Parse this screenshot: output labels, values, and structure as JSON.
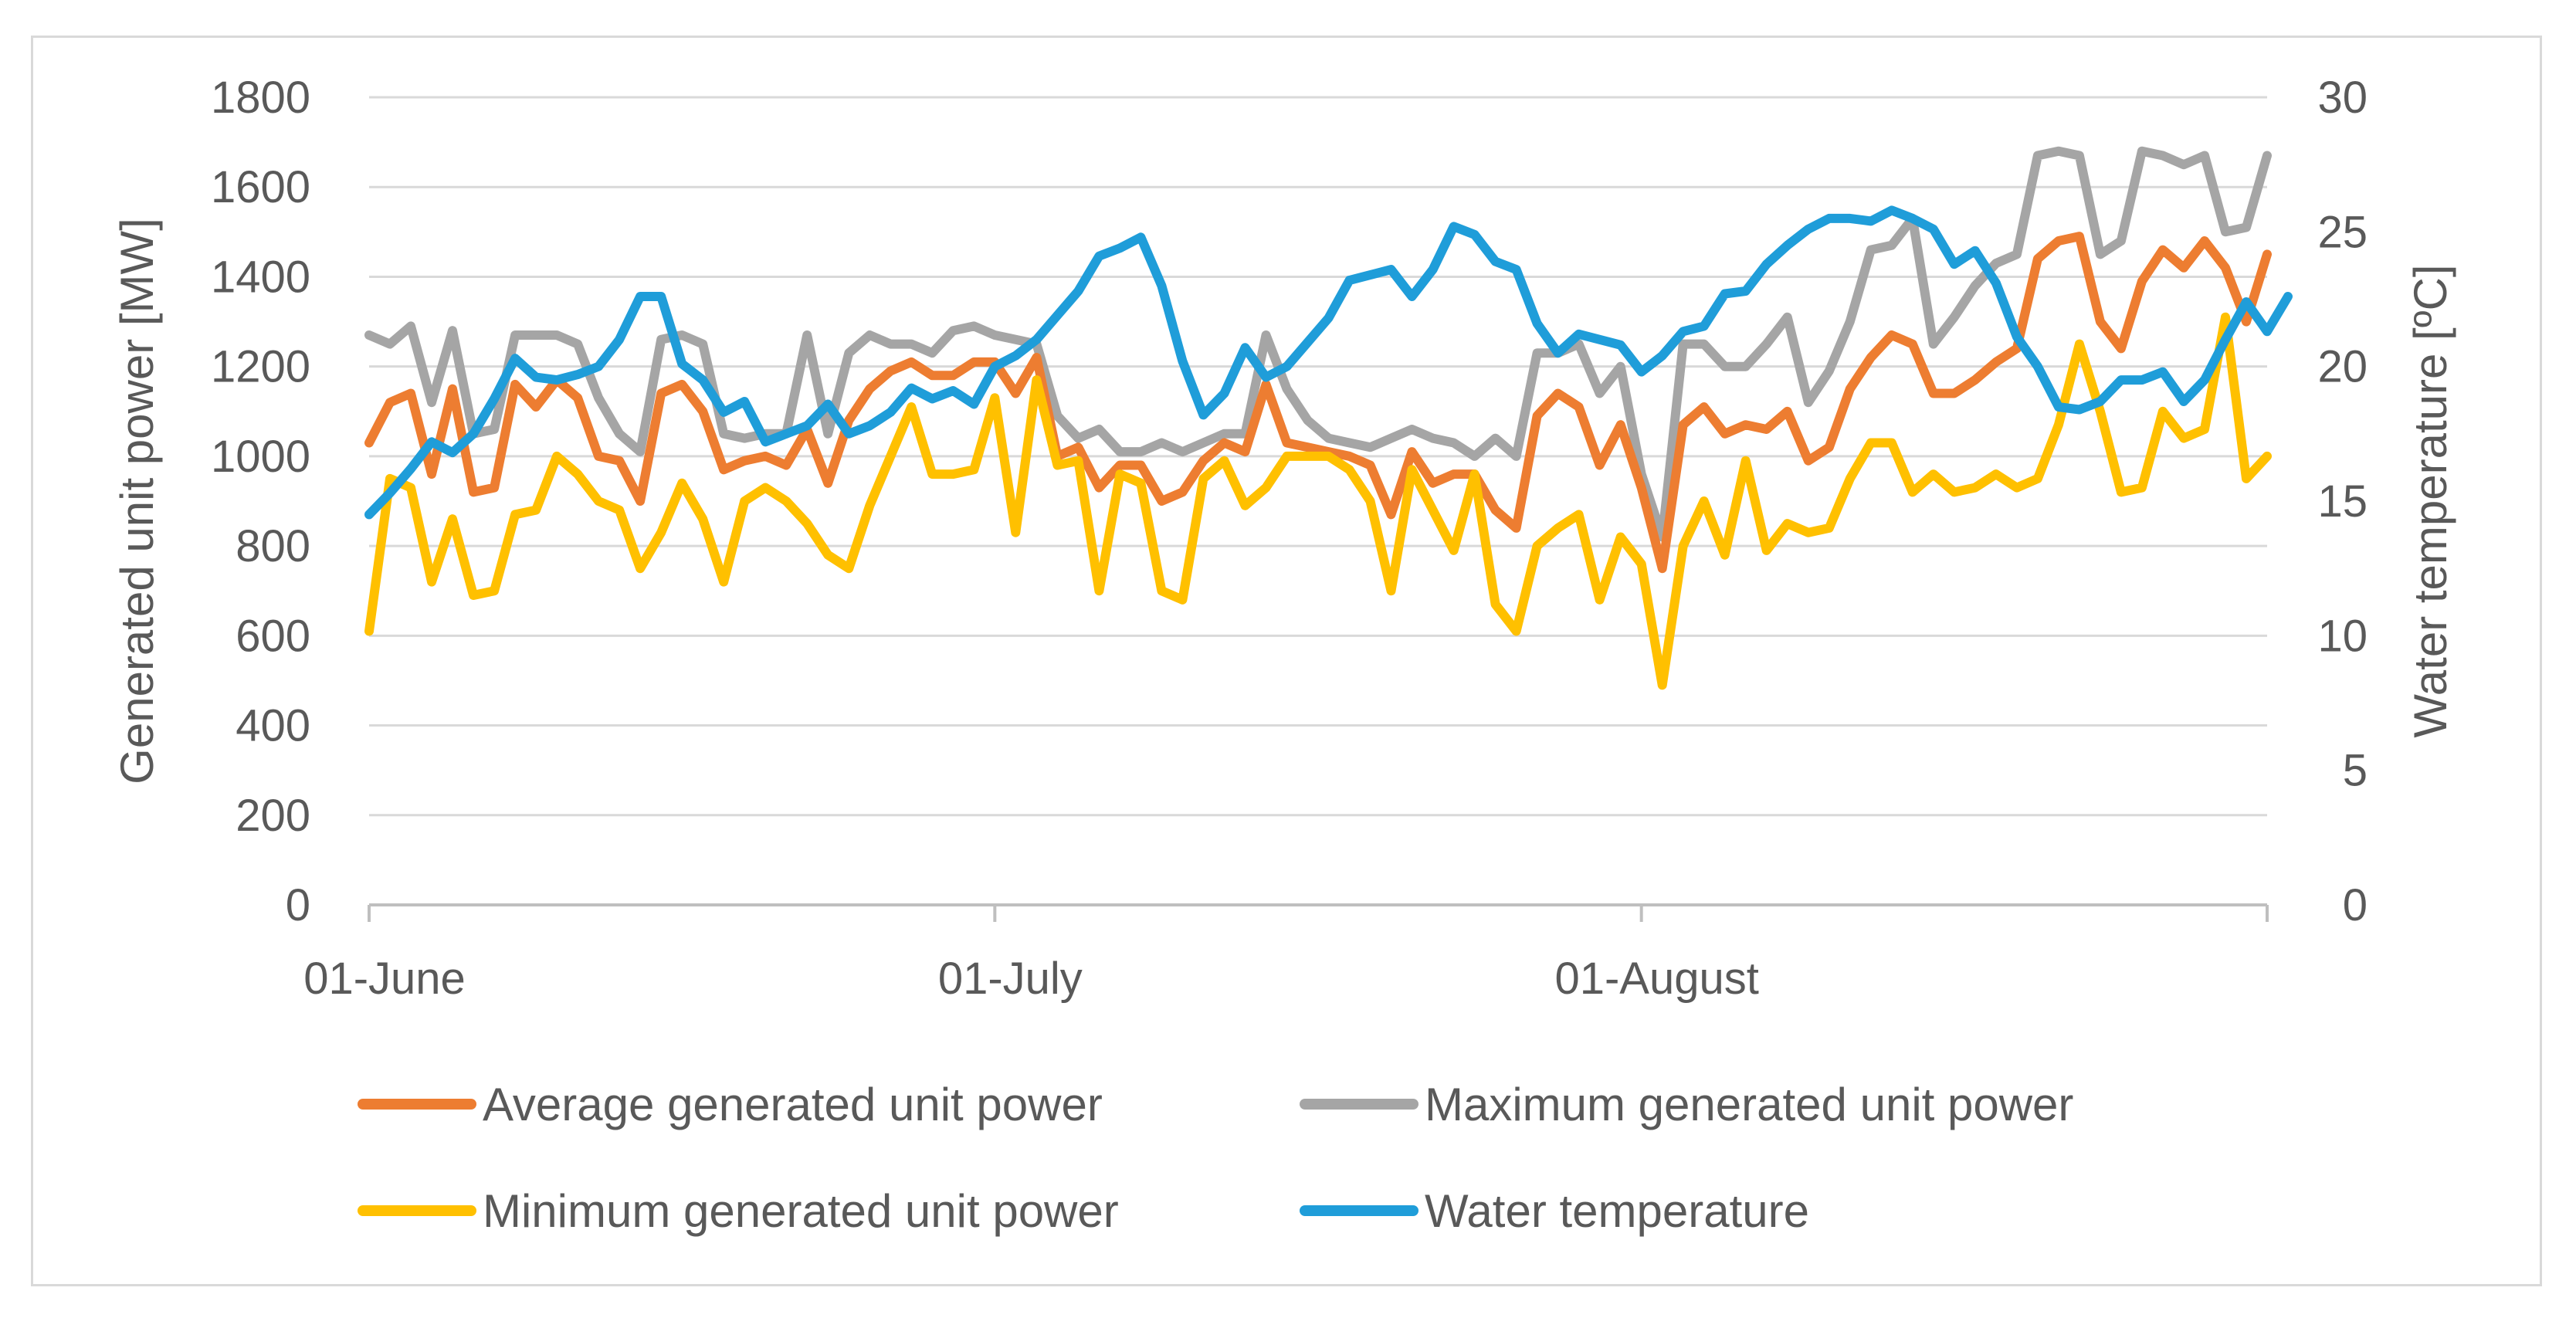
{
  "chart_data": {
    "type": "line",
    "x": {
      "ticks": [
        "01-June",
        "01-July",
        "01-August"
      ],
      "range": [
        "01-June",
        "03-September"
      ]
    },
    "y_left": {
      "label": "Generated unit power [MW]",
      "range": [
        0,
        1800
      ],
      "ticks": [
        0,
        200,
        400,
        600,
        800,
        1000,
        1200,
        1400,
        1600,
        1800
      ]
    },
    "y_right": {
      "label": "Water temperature [ºC]",
      "range": [
        0,
        30
      ],
      "ticks": [
        0,
        5,
        10,
        15,
        20,
        25,
        30
      ]
    },
    "grid": "horizontal",
    "legend_position": "bottom",
    "series": [
      {
        "name": "Average generated unit power",
        "axis": "left",
        "color": "#ed7d31",
        "values": [
          1030,
          1120,
          1140,
          960,
          1150,
          920,
          930,
          1160,
          1110,
          1170,
          1130,
          1000,
          990,
          900,
          1140,
          1160,
          1100,
          970,
          990,
          1000,
          980,
          1060,
          940,
          1080,
          1150,
          1190,
          1210,
          1180,
          1180,
          1210,
          1210,
          1140,
          1220,
          1000,
          1020,
          930,
          980,
          980,
          900,
          920,
          990,
          1030,
          1010,
          1160,
          1030,
          1020,
          1010,
          1000,
          980,
          870,
          1010,
          940,
          960,
          960,
          880,
          840,
          1090,
          1140,
          1110,
          980,
          1070,
          930,
          750,
          1070,
          1110,
          1050,
          1070,
          1060,
          1100,
          990,
          1020,
          1150,
          1220,
          1270,
          1250,
          1140,
          1140,
          1170,
          1210,
          1240,
          1440,
          1480,
          1490,
          1300,
          1240,
          1390,
          1460,
          1420,
          1480,
          1420,
          1300,
          1450
        ]
      },
      {
        "name": "Maximum generated unit power",
        "axis": "left",
        "color": "#a5a5a5",
        "values": [
          1270,
          1250,
          1290,
          1120,
          1280,
          1050,
          1060,
          1270,
          1270,
          1270,
          1250,
          1130,
          1050,
          1010,
          1260,
          1270,
          1250,
          1050,
          1040,
          1050,
          1050,
          1270,
          1050,
          1230,
          1270,
          1250,
          1250,
          1230,
          1280,
          1290,
          1270,
          1260,
          1250,
          1090,
          1040,
          1060,
          1010,
          1010,
          1030,
          1010,
          1030,
          1050,
          1050,
          1270,
          1150,
          1080,
          1040,
          1030,
          1020,
          1040,
          1060,
          1040,
          1030,
          1000,
          1040,
          1000,
          1230,
          1230,
          1250,
          1140,
          1200,
          960,
          820,
          1250,
          1250,
          1200,
          1200,
          1250,
          1310,
          1120,
          1190,
          1300,
          1460,
          1470,
          1530,
          1250,
          1310,
          1380,
          1430,
          1450,
          1670,
          1680,
          1670,
          1450,
          1480,
          1680,
          1670,
          1650,
          1670,
          1500,
          1510,
          1670
        ]
      },
      {
        "name": "Minimum generated unit power",
        "axis": "left",
        "color": "#ffc000",
        "values": [
          610,
          950,
          930,
          720,
          860,
          690,
          700,
          870,
          880,
          1000,
          960,
          900,
          880,
          750,
          830,
          940,
          860,
          720,
          900,
          930,
          900,
          850,
          780,
          750,
          890,
          1000,
          1110,
          960,
          960,
          970,
          1130,
          830,
          1170,
          980,
          990,
          700,
          960,
          940,
          700,
          680,
          950,
          990,
          890,
          930,
          1000,
          1000,
          1000,
          970,
          900,
          700,
          970,
          880,
          790,
          960,
          670,
          610,
          800,
          840,
          870,
          680,
          820,
          760,
          490,
          800,
          900,
          780,
          990,
          790,
          850,
          830,
          840,
          950,
          1030,
          1030,
          920,
          960,
          920,
          930,
          960,
          930,
          950,
          1070,
          1250,
          1100,
          920,
          930,
          1100,
          1040,
          1060,
          1310,
          950,
          1000
        ]
      },
      {
        "name": "Water temperature",
        "axis": "right",
        "color": "#1f9dd9",
        "values": [
          14.5,
          15.3,
          16.2,
          17.2,
          16.8,
          17.5,
          18.8,
          20.3,
          19.6,
          19.5,
          19.7,
          20.0,
          21.0,
          22.6,
          22.6,
          20.1,
          19.5,
          18.3,
          18.7,
          17.2,
          17.5,
          17.8,
          18.6,
          17.5,
          17.8,
          18.3,
          19.2,
          18.8,
          19.1,
          18.6,
          20.0,
          20.4,
          21.0,
          21.9,
          22.8,
          24.1,
          24.4,
          24.8,
          23.0,
          20.2,
          18.2,
          19.0,
          20.7,
          19.6,
          20.0,
          20.9,
          21.8,
          23.2,
          23.4,
          23.6,
          22.6,
          23.6,
          25.2,
          24.9,
          23.9,
          23.6,
          21.6,
          20.5,
          21.2,
          21.0,
          20.8,
          19.8,
          20.4,
          21.3,
          21.5,
          22.7,
          22.8,
          23.8,
          24.5,
          25.1,
          25.5,
          25.5,
          25.4,
          25.8,
          25.5,
          25.1,
          23.8,
          24.3,
          23.1,
          21.1,
          20.0,
          18.5,
          18.4,
          18.7,
          19.5,
          19.5,
          19.8,
          18.7,
          19.5,
          21.0,
          22.4,
          21.3,
          22.6
        ]
      }
    ]
  }
}
